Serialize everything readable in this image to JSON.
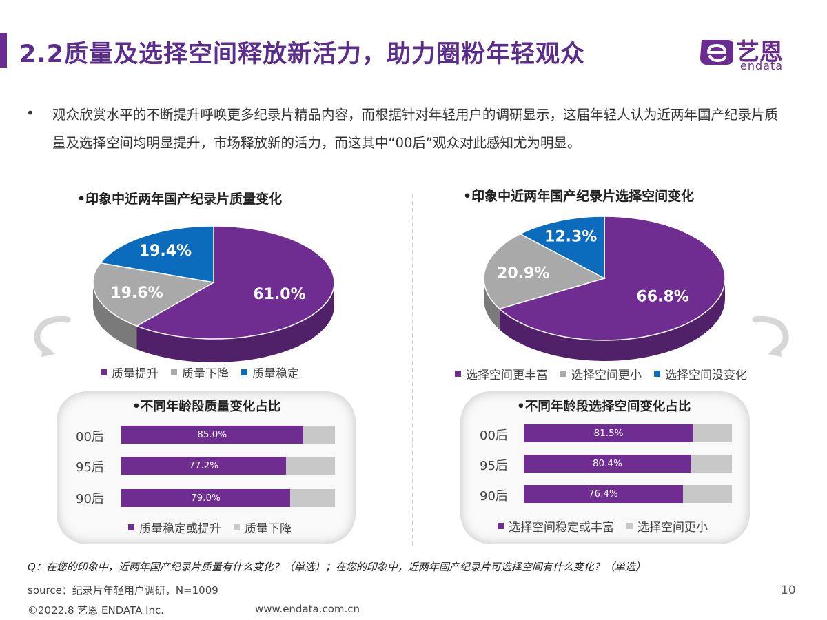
{
  "header": {
    "title": "2.2质量及选择空间释放新活力，助力圈粉年轻观众",
    "logo_cn": "艺恩",
    "logo_en": "endata"
  },
  "intro": {
    "bullet": "•",
    "text": "观众欣赏水平的不断提升呼唤更多纪录片精品内容，而根据针对年轻用户的调研显示，这届年轻人认为近两年国产纪录片质量及选择空间均明显提升，市场释放新的活力，而这其中“00后”观众对此感知尤为明显。"
  },
  "colors": {
    "purple": "#6f2c91",
    "gray": "#a9a9a9",
    "blue": "#0b6bbd",
    "track_gray": "#c8c8c8",
    "brand": "#6b2c91"
  },
  "chart_data": [
    {
      "type": "pie",
      "title": "•印象中近两年国产纪录片质量变化",
      "slices": [
        {
          "name": "质量提升",
          "value": 61.0,
          "label": "61.0%",
          "color": "#6f2c91"
        },
        {
          "name": "质量下降",
          "value": 19.6,
          "label": "19.6%",
          "color": "#a9a9a9"
        },
        {
          "name": "质量稳定",
          "value": 19.4,
          "label": "19.4%",
          "color": "#0b6bbd"
        }
      ],
      "legend_position": "bottom"
    },
    {
      "type": "pie",
      "title": "•印象中近两年国产纪录片选择空间变化",
      "slices": [
        {
          "name": "选择空间更丰富",
          "value": 66.8,
          "label": "66.8%",
          "color": "#6f2c91"
        },
        {
          "name": "选择空间更小",
          "value": 20.9,
          "label": "20.9%",
          "color": "#a9a9a9"
        },
        {
          "name": "选择空间没变化",
          "value": 12.3,
          "label": "12.3%",
          "color": "#0b6bbd"
        }
      ],
      "legend_position": "bottom"
    },
    {
      "type": "bar",
      "orientation": "horizontal",
      "stacked": true,
      "title": "•不同年龄段质量变化占比",
      "categories": [
        "00后",
        "95后",
        "90后"
      ],
      "series": [
        {
          "name": "质量稳定或提升",
          "values": [
            85.0,
            77.2,
            79.0
          ],
          "labels": [
            "85.0%",
            "77.2%",
            "79.0%"
          ],
          "color": "#6f2c91"
        },
        {
          "name": "质量下降",
          "values": [
            15.0,
            22.8,
            21.0
          ],
          "color": "#c8c8c8"
        }
      ],
      "xlim": [
        0,
        100
      ]
    },
    {
      "type": "bar",
      "orientation": "horizontal",
      "stacked": true,
      "title": "•不同年龄段选择空间变化占比",
      "categories": [
        "00后",
        "95后",
        "90后"
      ],
      "series": [
        {
          "name": "选择空间稳定或丰富",
          "values": [
            81.5,
            80.4,
            76.4
          ],
          "labels": [
            "81.5%",
            "80.4%",
            "76.4%"
          ],
          "color": "#6f2c91"
        },
        {
          "name": "选择空间更小",
          "values": [
            18.5,
            19.6,
            23.6
          ],
          "color": "#c8c8c8"
        }
      ],
      "xlim": [
        0,
        100
      ]
    }
  ],
  "footer": {
    "question": "Q：在您的印象中，近两年国产纪录片质量有什么变化？（单选）；在您的印象中，近两年国产纪录片可选择空间有什么变化？（单选）",
    "source": "source：纪录片年轻用户调研，N=1009",
    "page": "10",
    "copyright": "©2022.8 艺恩 ENDATA Inc.",
    "website": "www.endata.com.cn"
  }
}
